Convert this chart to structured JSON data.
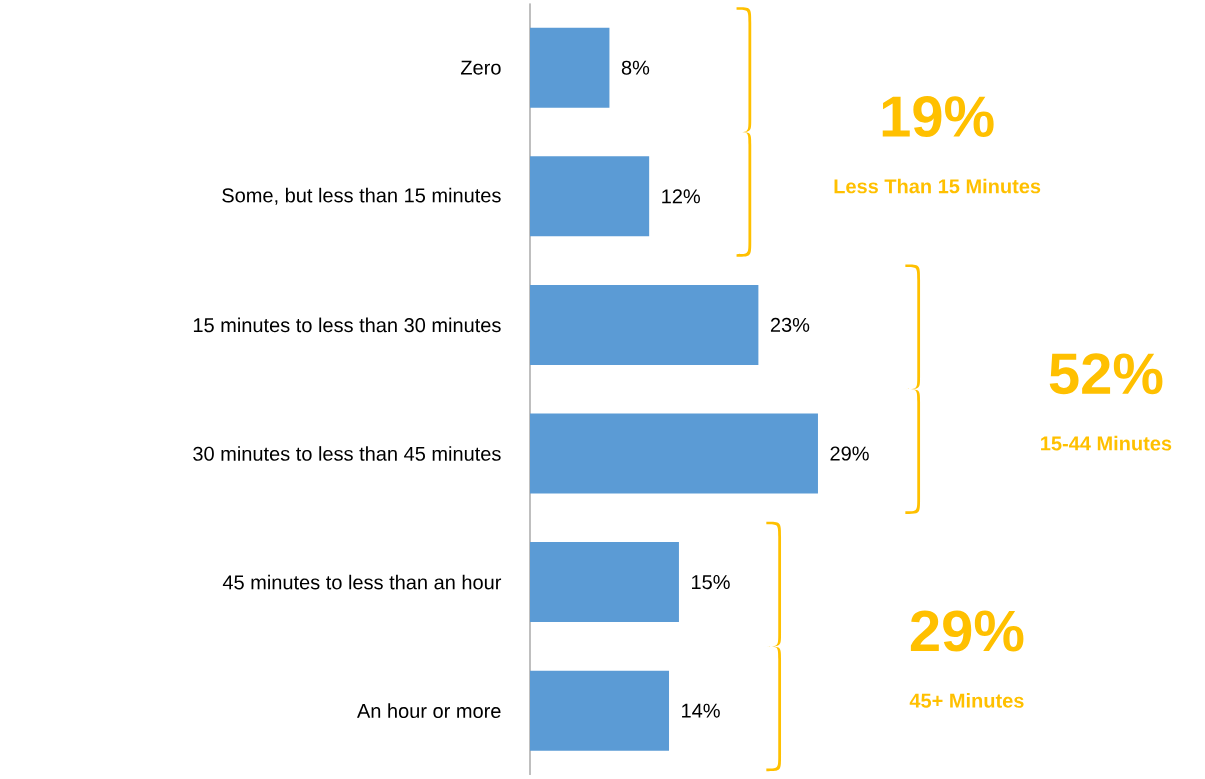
{
  "chart_data": {
    "type": "bar",
    "orientation": "horizontal",
    "categories": [
      "Zero",
      "Some, but less than 15 minutes",
      "15 minutes to less than 30 minutes",
      "30 minutes to less than 45 minutes",
      "45 minutes to less than an hour",
      "An hour or more"
    ],
    "values": [
      8,
      12,
      23,
      29,
      15,
      14
    ],
    "value_labels": [
      "8%",
      "12%",
      "23%",
      "29%",
      "15%",
      "14%"
    ],
    "color": "#5b9bd5",
    "annotations": [
      "19%",
      "Less Than 15 Minutes",
      "52%",
      "15-44 Minutes",
      "29%",
      "45+ Minutes"
    ],
    "tick_labels": "y"
  }
}
